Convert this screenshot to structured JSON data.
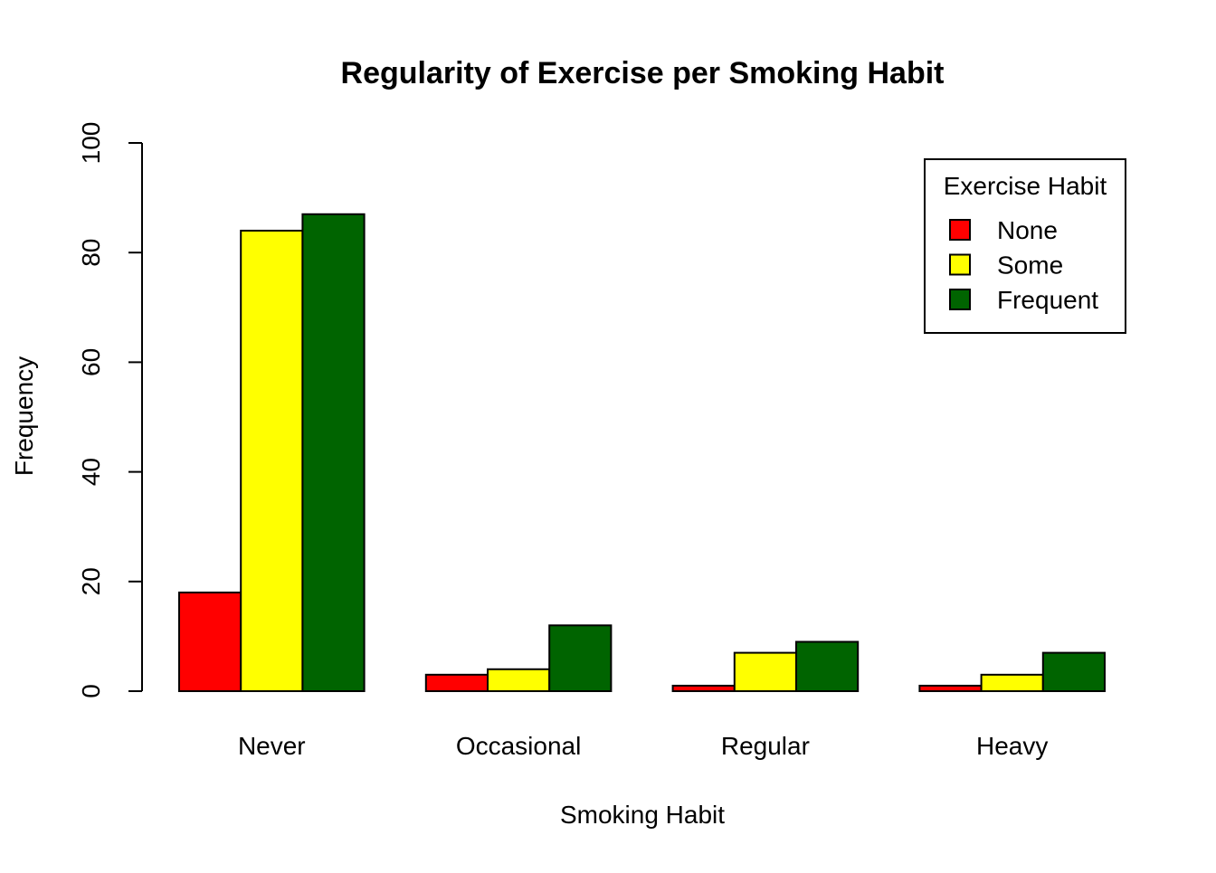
{
  "chart_data": {
    "type": "bar",
    "title": "Regularity of Exercise per Smoking Habit",
    "xlabel": "Smoking Habit",
    "ylabel": "Frequency",
    "categories": [
      "Never",
      "Occasional",
      "Regular",
      "Heavy"
    ],
    "series": [
      {
        "name": "None",
        "color": "#ff0000",
        "values": [
          18,
          3,
          1,
          1
        ]
      },
      {
        "name": "Some",
        "color": "#ffff00",
        "values": [
          84,
          4,
          7,
          3
        ]
      },
      {
        "name": "Frequent",
        "color": "#006400",
        "values": [
          87,
          12,
          9,
          7
        ]
      }
    ],
    "ylim": [
      0,
      100
    ],
    "yticks": [
      0,
      20,
      40,
      60,
      80,
      100
    ],
    "grid": false,
    "legend": {
      "title": "Exercise Habit",
      "position": "top-right"
    }
  }
}
